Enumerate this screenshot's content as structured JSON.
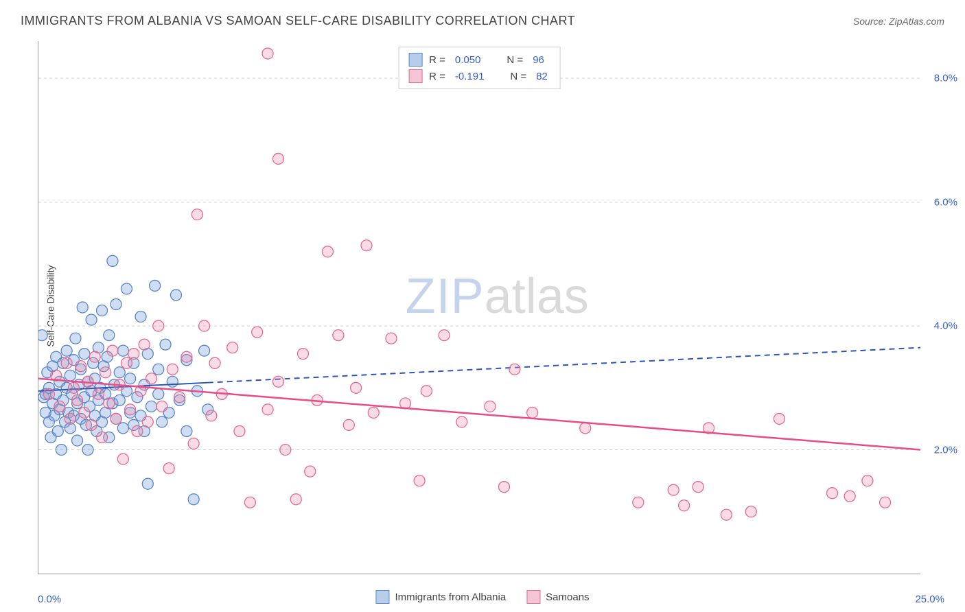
{
  "title": "IMMIGRANTS FROM ALBANIA VS SAMOAN SELF-CARE DISABILITY CORRELATION CHART",
  "source": "Source: ZipAtlas.com",
  "y_axis_label": "Self-Care Disability",
  "watermark": {
    "part1": "ZIP",
    "part2": "atlas"
  },
  "chart": {
    "type": "scatter",
    "xlim": [
      0,
      25
    ],
    "ylim": [
      0,
      8.6
    ],
    "x_ticks": [
      0,
      5,
      10,
      15,
      20,
      25
    ],
    "x_tick_labels": {
      "0": "0.0%",
      "25": "25.0%"
    },
    "y_gridlines": [
      2,
      4,
      6,
      8
    ],
    "y_tick_labels": {
      "2": "2.0%",
      "4": "4.0%",
      "6": "6.0%",
      "8": "8.0%"
    },
    "background_color": "#ffffff",
    "grid_color": "#d0d0d0",
    "axis_color": "#999999",
    "tick_label_color": "#3860c8",
    "marker_radius": 8,
    "marker_stroke_width": 1.3,
    "series": [
      {
        "name": "Immigrants from Albania",
        "fill": "rgba(120,160,220,0.35)",
        "stroke": "#5a85c7",
        "swatch_fill": "#b8cdec",
        "swatch_border": "#5a85c7",
        "R": "0.050",
        "N": "96",
        "trend": {
          "y_at_x0": 2.95,
          "y_at_xmax": 3.65,
          "solid_until_x": 4.8,
          "color": "#2a56b8",
          "width": 2
        },
        "points": [
          [
            0.1,
            3.85
          ],
          [
            0.15,
            2.85
          ],
          [
            0.2,
            2.6
          ],
          [
            0.2,
            2.9
          ],
          [
            0.25,
            3.25
          ],
          [
            0.3,
            2.45
          ],
          [
            0.3,
            3.0
          ],
          [
            0.35,
            2.2
          ],
          [
            0.4,
            2.75
          ],
          [
            0.4,
            3.35
          ],
          [
            0.45,
            2.55
          ],
          [
            0.5,
            2.9
          ],
          [
            0.5,
            3.5
          ],
          [
            0.55,
            2.3
          ],
          [
            0.6,
            3.1
          ],
          [
            0.6,
            2.65
          ],
          [
            0.65,
            2.0
          ],
          [
            0.7,
            3.4
          ],
          [
            0.7,
            2.8
          ],
          [
            0.75,
            2.45
          ],
          [
            0.8,
            3.0
          ],
          [
            0.8,
            3.6
          ],
          [
            0.85,
            2.6
          ],
          [
            0.9,
            2.35
          ],
          [
            0.9,
            3.2
          ],
          [
            0.95,
            2.9
          ],
          [
            1.0,
            2.55
          ],
          [
            1.0,
            3.45
          ],
          [
            1.05,
            3.8
          ],
          [
            1.1,
            2.15
          ],
          [
            1.1,
            2.75
          ],
          [
            1.15,
            3.05
          ],
          [
            1.2,
            2.5
          ],
          [
            1.2,
            3.3
          ],
          [
            1.25,
            4.3
          ],
          [
            1.3,
            2.85
          ],
          [
            1.3,
            3.55
          ],
          [
            1.35,
            2.4
          ],
          [
            1.4,
            3.1
          ],
          [
            1.4,
            2.0
          ],
          [
            1.45,
            2.7
          ],
          [
            1.5,
            4.1
          ],
          [
            1.5,
            2.95
          ],
          [
            1.55,
            3.4
          ],
          [
            1.6,
            2.55
          ],
          [
            1.6,
            3.15
          ],
          [
            1.65,
            2.3
          ],
          [
            1.7,
            3.65
          ],
          [
            1.7,
            2.8
          ],
          [
            1.75,
            3.0
          ],
          [
            1.8,
            4.25
          ],
          [
            1.8,
            2.45
          ],
          [
            1.85,
            3.35
          ],
          [
            1.9,
            2.9
          ],
          [
            1.9,
            2.6
          ],
          [
            1.95,
            3.5
          ],
          [
            2.0,
            2.2
          ],
          [
            2.0,
            3.85
          ],
          [
            2.1,
            5.05
          ],
          [
            2.1,
            2.75
          ],
          [
            2.15,
            3.05
          ],
          [
            2.2,
            4.35
          ],
          [
            2.2,
            2.5
          ],
          [
            2.3,
            3.25
          ],
          [
            2.3,
            2.8
          ],
          [
            2.4,
            3.6
          ],
          [
            2.4,
            2.35
          ],
          [
            2.5,
            2.95
          ],
          [
            2.5,
            4.6
          ],
          [
            2.6,
            3.15
          ],
          [
            2.6,
            2.6
          ],
          [
            2.7,
            2.4
          ],
          [
            2.7,
            3.4
          ],
          [
            2.8,
            2.85
          ],
          [
            2.9,
            4.15
          ],
          [
            2.9,
            2.55
          ],
          [
            3.0,
            3.05
          ],
          [
            3.0,
            2.3
          ],
          [
            3.1,
            1.45
          ],
          [
            3.1,
            3.55
          ],
          [
            3.2,
            2.7
          ],
          [
            3.3,
            4.65
          ],
          [
            3.4,
            2.9
          ],
          [
            3.4,
            3.3
          ],
          [
            3.5,
            2.45
          ],
          [
            3.6,
            3.7
          ],
          [
            3.7,
            2.6
          ],
          [
            3.8,
            3.1
          ],
          [
            3.9,
            4.5
          ],
          [
            4.0,
            2.8
          ],
          [
            4.2,
            3.45
          ],
          [
            4.2,
            2.3
          ],
          [
            4.4,
            1.2
          ],
          [
            4.5,
            2.95
          ],
          [
            4.7,
            3.6
          ],
          [
            4.8,
            2.65
          ]
        ]
      },
      {
        "name": "Samoans",
        "fill": "rgba(235,140,170,0.30)",
        "stroke": "#e46a94",
        "swatch_fill": "#f4c6d5",
        "swatch_border": "#e46a94",
        "R": "-0.191",
        "N": "82",
        "trend": {
          "y_at_x0": 3.15,
          "y_at_xmax": 2.0,
          "solid_until_x": 25,
          "color": "#e84b87",
          "width": 2.5
        },
        "points": [
          [
            0.3,
            2.9
          ],
          [
            0.5,
            3.2
          ],
          [
            0.6,
            2.7
          ],
          [
            0.8,
            3.4
          ],
          [
            0.9,
            2.5
          ],
          [
            1.0,
            3.0
          ],
          [
            1.1,
            2.8
          ],
          [
            1.2,
            3.35
          ],
          [
            1.3,
            2.6
          ],
          [
            1.4,
            3.1
          ],
          [
            1.5,
            2.4
          ],
          [
            1.6,
            3.5
          ],
          [
            1.7,
            2.9
          ],
          [
            1.8,
            2.2
          ],
          [
            1.9,
            3.25
          ],
          [
            2.0,
            2.75
          ],
          [
            2.1,
            3.6
          ],
          [
            2.2,
            2.5
          ],
          [
            2.3,
            3.05
          ],
          [
            2.4,
            1.85
          ],
          [
            2.5,
            3.4
          ],
          [
            2.6,
            2.65
          ],
          [
            2.7,
            3.55
          ],
          [
            2.8,
            2.3
          ],
          [
            2.9,
            2.95
          ],
          [
            3.0,
            3.7
          ],
          [
            3.1,
            2.45
          ],
          [
            3.2,
            3.15
          ],
          [
            3.4,
            4.0
          ],
          [
            3.5,
            2.7
          ],
          [
            3.7,
            1.7
          ],
          [
            3.8,
            3.3
          ],
          [
            4.0,
            2.85
          ],
          [
            4.2,
            3.5
          ],
          [
            4.4,
            2.1
          ],
          [
            4.5,
            5.8
          ],
          [
            4.7,
            4.0
          ],
          [
            4.9,
            2.55
          ],
          [
            5.0,
            3.4
          ],
          [
            5.2,
            2.9
          ],
          [
            5.5,
            3.65
          ],
          [
            5.7,
            2.3
          ],
          [
            6.0,
            1.15
          ],
          [
            6.2,
            3.9
          ],
          [
            6.5,
            8.4
          ],
          [
            6.5,
            2.65
          ],
          [
            6.8,
            3.1
          ],
          [
            6.8,
            6.7
          ],
          [
            7.0,
            2.0
          ],
          [
            7.3,
            1.2
          ],
          [
            7.5,
            3.55
          ],
          [
            7.7,
            1.65
          ],
          [
            7.9,
            2.8
          ],
          [
            8.2,
            5.2
          ],
          [
            8.5,
            3.85
          ],
          [
            8.8,
            2.4
          ],
          [
            9.0,
            3.0
          ],
          [
            9.3,
            5.3
          ],
          [
            9.5,
            2.6
          ],
          [
            10.0,
            3.8
          ],
          [
            10.4,
            2.75
          ],
          [
            10.8,
            1.5
          ],
          [
            11.0,
            2.95
          ],
          [
            11.5,
            3.85
          ],
          [
            12.0,
            2.45
          ],
          [
            12.8,
            2.7
          ],
          [
            13.2,
            1.4
          ],
          [
            13.5,
            3.3
          ],
          [
            14.0,
            2.6
          ],
          [
            15.5,
            2.35
          ],
          [
            17.0,
            1.15
          ],
          [
            18.0,
            1.35
          ],
          [
            18.3,
            1.1
          ],
          [
            18.7,
            1.4
          ],
          [
            19.0,
            2.35
          ],
          [
            19.5,
            0.95
          ],
          [
            20.2,
            1.0
          ],
          [
            21.0,
            2.5
          ],
          [
            22.5,
            1.3
          ],
          [
            23.0,
            1.25
          ],
          [
            23.5,
            1.5
          ],
          [
            24.0,
            1.15
          ]
        ]
      }
    ],
    "legend_labels": {
      "R": "R =",
      "N": "N ="
    },
    "bottom_legend": [
      "Immigrants from Albania",
      "Samoans"
    ]
  }
}
